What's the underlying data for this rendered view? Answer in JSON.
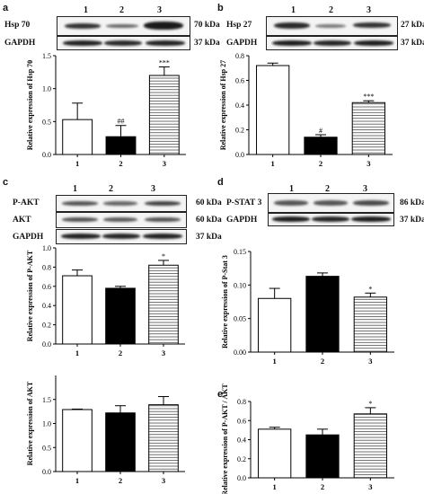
{
  "panels": [
    {
      "letter": "a",
      "lanes": [
        "1",
        "2",
        "3"
      ],
      "blots": [
        {
          "name": "Hsp 70",
          "kda": "70 kDa"
        },
        {
          "name": "GAPDH",
          "kda": "37 kDa"
        }
      ]
    },
    {
      "letter": "b",
      "lanes": [
        "1",
        "2",
        "3"
      ],
      "blots": [
        {
          "name": "Hsp 27",
          "kda": "27 kDa"
        },
        {
          "name": "GAPDH",
          "kda": "37 kDa"
        }
      ]
    },
    {
      "letter": "c",
      "lanes": [
        "1",
        "2",
        "3"
      ],
      "blots": [
        {
          "name": "P-AKT",
          "kda": "60 kDa"
        },
        {
          "name": "AKT",
          "kda": "60 kDa"
        },
        {
          "name": "GAPDH",
          "kda": "37 kDa"
        }
      ]
    },
    {
      "letter": "d",
      "lanes": [
        "1",
        "2",
        "3"
      ],
      "blots": [
        {
          "name": "P-STAT 3",
          "kda": "86 kDa"
        },
        {
          "name": "GAPDH",
          "kda": "37 kDa"
        }
      ]
    },
    {
      "letter": "e",
      "lanes": [],
      "blots": []
    }
  ],
  "chart_data": [
    {
      "type": "bar",
      "panel": "a",
      "categories": [
        "1",
        "2",
        "3"
      ],
      "values": [
        0.53,
        0.27,
        1.2
      ],
      "errors": [
        0.25,
        0.17,
        0.13
      ],
      "annotations": [
        "",
        "##",
        "***"
      ],
      "ylabel": "Relative expression of Hsp 70",
      "ylim": [
        0,
        1.5
      ],
      "yticks": [
        "0.0",
        "0.5",
        "1.0",
        "1.5"
      ],
      "ytick_values": [
        0,
        0.5,
        1,
        1.5
      ],
      "fills": [
        "white",
        "black",
        "hstripe"
      ]
    },
    {
      "type": "bar",
      "panel": "b",
      "categories": [
        "1",
        "2",
        "3"
      ],
      "values": [
        0.72,
        0.14,
        0.42
      ],
      "errors": [
        0.02,
        0.02,
        0.015
      ],
      "annotations": [
        "",
        "#",
        "***"
      ],
      "ylabel": "Relative expression of Hsp 27",
      "ylim": [
        0,
        0.8
      ],
      "yticks": [
        "0.0",
        "0.2",
        "0.4",
        "0.6",
        "0.8"
      ],
      "ytick_values": [
        0,
        0.2,
        0.4,
        0.6,
        0.8
      ],
      "fills": [
        "white",
        "black",
        "hstripe"
      ]
    },
    {
      "type": "bar",
      "panel": "c",
      "categories": [
        "1",
        "2",
        "3"
      ],
      "values": [
        0.71,
        0.58,
        0.82
      ],
      "errors": [
        0.06,
        0.02,
        0.05
      ],
      "annotations": [
        "",
        "",
        "*"
      ],
      "ylabel": "Relative expression of P-AKT",
      "ylim": [
        0,
        1.0
      ],
      "yticks": [
        "0.0",
        "0.2",
        "0.4",
        "0.6",
        "0.8",
        "1.0"
      ],
      "ytick_values": [
        0,
        0.2,
        0.4,
        0.6,
        0.8,
        1.0
      ],
      "fills": [
        "white",
        "black",
        "hstripe"
      ]
    },
    {
      "type": "bar",
      "panel": "c2",
      "categories": [
        "1",
        "2",
        "3"
      ],
      "values": [
        1.29,
        1.22,
        1.39
      ],
      "errors": [
        0.01,
        0.15,
        0.17
      ],
      "annotations": [
        "",
        "",
        ""
      ],
      "ylabel": "Relative expression of AKT",
      "ylim": [
        0,
        2.0
      ],
      "yticks": [
        "0.0",
        "0.5",
        "1.0",
        "1.5"
      ],
      "ytick_values": [
        0,
        0.5,
        1,
        1.5
      ],
      "fills": [
        "white",
        "black",
        "hstripe"
      ]
    },
    {
      "type": "bar",
      "panel": "d",
      "categories": [
        "1",
        "2",
        "3"
      ],
      "values": [
        0.08,
        0.113,
        0.082
      ],
      "errors": [
        0.015,
        0.005,
        0.006
      ],
      "annotations": [
        "",
        "",
        "*"
      ],
      "ylabel": "Relative expression of P-Stat 3",
      "ylim": [
        0,
        0.15
      ],
      "yticks": [
        "0.00",
        "0.05",
        "0.10",
        "0.15"
      ],
      "ytick_values": [
        0,
        0.05,
        0.1,
        0.15
      ],
      "fills": [
        "white",
        "black",
        "hstripe"
      ]
    },
    {
      "type": "bar",
      "panel": "e",
      "categories": [
        "1",
        "2",
        "3"
      ],
      "values": [
        0.51,
        0.45,
        0.67
      ],
      "errors": [
        0.02,
        0.06,
        0.065
      ],
      "annotations": [
        "",
        "",
        "*"
      ],
      "ylabel": "Relative expression of P-AKT / AKT",
      "ylim": [
        0,
        0.8
      ],
      "yticks": [
        "0.0",
        "0.2",
        "0.4",
        "0.6",
        "0.8"
      ],
      "ytick_values": [
        0,
        0.2,
        0.4,
        0.6,
        0.8
      ],
      "fills": [
        "white",
        "black",
        "hstripe"
      ]
    }
  ]
}
